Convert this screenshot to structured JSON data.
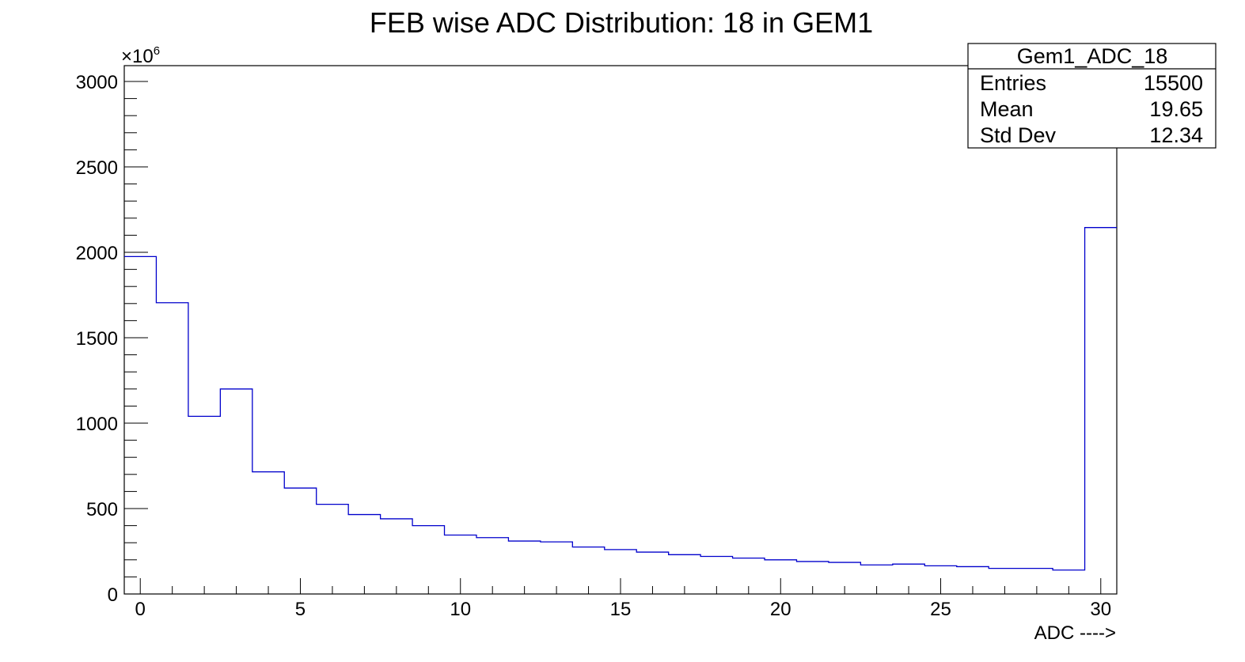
{
  "colors": {
    "histogram_line": "#0000cc",
    "frame": "#000000",
    "background": "#ffffff"
  },
  "chart_data": {
    "type": "bar",
    "style": "step-histogram",
    "title": "FEB wise ADC Distribution: 18 in GEM1",
    "xlabel": "ADC ---->",
    "ylabel": "",
    "y_exponent_label": "×10",
    "y_exponent_power": "6",
    "xlim": [
      -0.5,
      30.5
    ],
    "ylim": [
      0,
      3000
    ],
    "x_ticks": [
      0,
      5,
      10,
      15,
      20,
      25,
      30
    ],
    "x_tick_labels": [
      "0",
      "5",
      "10",
      "15",
      "20",
      "25",
      "30"
    ],
    "y_ticks": [
      0,
      500,
      1000,
      1500,
      2000,
      2500,
      3000
    ],
    "y_tick_labels": [
      "0",
      "500",
      "1000",
      "1500",
      "2000",
      "2500",
      "3000"
    ],
    "bin_centers": [
      0,
      1,
      2,
      3,
      4,
      5,
      6,
      7,
      8,
      9,
      10,
      11,
      12,
      13,
      14,
      15,
      16,
      17,
      18,
      19,
      20,
      21,
      22,
      23,
      24,
      25,
      26,
      27,
      28,
      29,
      30
    ],
    "values": [
      1975,
      1705,
      1040,
      1200,
      715,
      620,
      525,
      465,
      440,
      400,
      345,
      330,
      310,
      305,
      275,
      260,
      245,
      230,
      220,
      210,
      200,
      190,
      185,
      170,
      175,
      165,
      160,
      150,
      150,
      140,
      2145
    ],
    "grid": false,
    "legend": "none"
  },
  "stats_box": {
    "name": "Gem1_ADC_18",
    "rows": [
      {
        "label": "Entries",
        "value": "15500"
      },
      {
        "label": "Mean",
        "value": "19.65"
      },
      {
        "label": "Std Dev",
        "value": "12.34"
      }
    ]
  }
}
